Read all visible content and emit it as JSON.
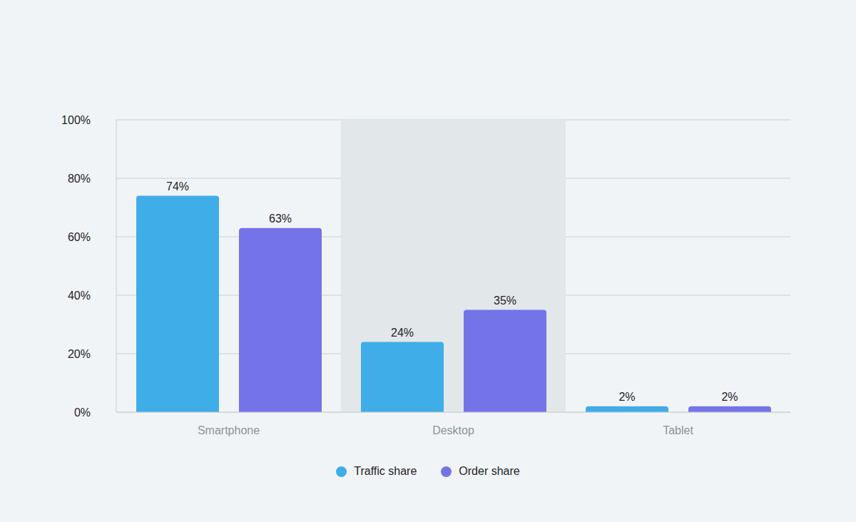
{
  "chart_data": {
    "type": "bar",
    "categories": [
      "Smartphone",
      "Desktop",
      "Tablet"
    ],
    "series": [
      {
        "name": "Traffic share",
        "color": "#3eade8",
        "values": [
          74,
          24,
          2
        ],
        "value_labels": [
          "74%",
          "24%",
          "2%"
        ]
      },
      {
        "name": "Order share",
        "color": "#7473e8",
        "values": [
          63,
          35,
          2
        ],
        "value_labels": [
          "63%",
          "35%",
          "2%"
        ]
      }
    ],
    "ylim": [
      0,
      100
    ],
    "yticks": [
      {
        "value": 0,
        "label": "0%"
      },
      {
        "value": 20,
        "label": "20%"
      },
      {
        "value": 40,
        "label": "40%"
      },
      {
        "value": 60,
        "label": "60%"
      },
      {
        "value": 80,
        "label": "80%"
      },
      {
        "value": 100,
        "label": "100%"
      }
    ],
    "grid": true,
    "data_labels": true,
    "legend": "bottom"
  }
}
